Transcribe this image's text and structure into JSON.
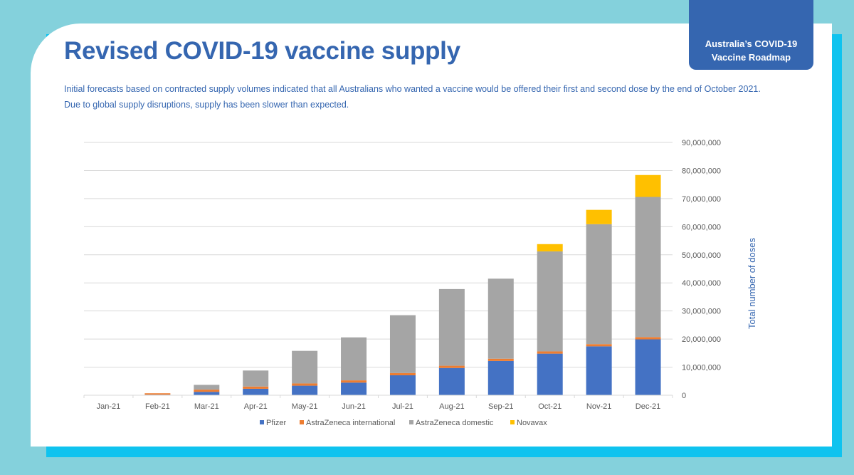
{
  "page": {
    "title": "Revised COVID-19 vaccine supply",
    "subtitle_lines": [
      "Initial forecasts based on contracted supply volumes indicated that all Australians who wanted a vaccine would be offered their first and second dose by the end of October 2021.",
      "Due to global supply disruptions, supply has been slower than expected."
    ],
    "badge": {
      "line1": "Australia’s COVID-19",
      "line2": "Vaccine Roadmap"
    }
  },
  "colors": {
    "background": "#84d1dc",
    "accent_panel": "#0fc3ef",
    "brand_blue": "#3566b0"
  },
  "chart_data": {
    "type": "bar",
    "stacked": true,
    "title": "",
    "xlabel": "",
    "ylabel": "Total number of doses",
    "y_axis_position": "right",
    "ylim": [
      0,
      90000000
    ],
    "y_ticks": [
      0,
      10000000,
      20000000,
      30000000,
      40000000,
      50000000,
      60000000,
      70000000,
      80000000,
      90000000
    ],
    "y_tick_labels": [
      "0",
      "10,000,000",
      "20,000,000",
      "30,000,000",
      "40,000,000",
      "50,000,000",
      "60,000,000",
      "70,000,000",
      "80,000,000",
      "90,000,000"
    ],
    "grid": true,
    "legend_position": "bottom",
    "categories": [
      "Jan-21",
      "Feb-21",
      "Mar-21",
      "Apr-21",
      "May-21",
      "Jun-21",
      "Jul-21",
      "Aug-21",
      "Sep-21",
      "Oct-21",
      "Nov-21",
      "Dec-21"
    ],
    "series": [
      {
        "name": "Pfizer",
        "color": "#4472c4",
        "values": [
          0,
          200000,
          1200000,
          2300000,
          3400000,
          4500000,
          7100000,
          9700000,
          12200000,
          14800000,
          17400000,
          19900000
        ]
      },
      {
        "name": "AstraZeneca international",
        "color": "#ed7d31",
        "values": [
          0,
          500000,
          800000,
          800000,
          800000,
          800000,
          800000,
          800000,
          800000,
          800000,
          800000,
          800000
        ]
      },
      {
        "name": "AstraZeneca domestic",
        "color": "#a5a5a5",
        "values": [
          0,
          0,
          1700000,
          5700000,
          11600000,
          15300000,
          20600000,
          27300000,
          28500000,
          35600000,
          42700000,
          49900000
        ]
      },
      {
        "name": "Novavax",
        "color": "#ffc000",
        "values": [
          0,
          0,
          0,
          0,
          0,
          0,
          0,
          0,
          0,
          2600000,
          5100000,
          7800000
        ]
      }
    ]
  }
}
